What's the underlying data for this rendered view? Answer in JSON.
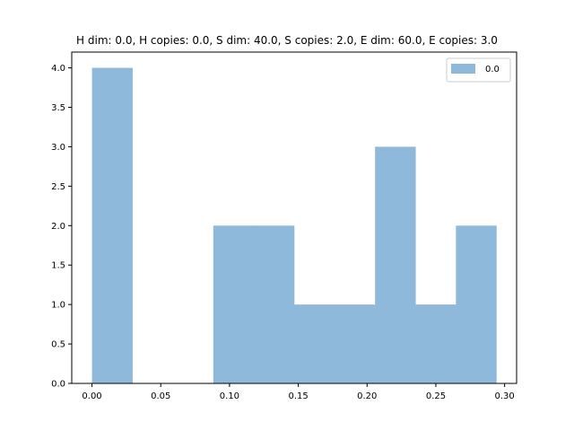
{
  "chart_data": {
    "type": "bar",
    "title": "H dim: 0.0, H copies: 0.0, S dim: 40.0, S copies: 2.0, E dim: 60.0, E copies: 3.0",
    "xlabel": "",
    "ylabel": "",
    "bins": [
      [
        0.0,
        0.0294
      ],
      [
        0.0294,
        0.0588
      ],
      [
        0.0588,
        0.0882
      ],
      [
        0.0882,
        0.1176
      ],
      [
        0.1176,
        0.147
      ],
      [
        0.147,
        0.1764
      ],
      [
        0.1764,
        0.2058
      ],
      [
        0.2058,
        0.2352
      ],
      [
        0.2352,
        0.2646
      ],
      [
        0.2646,
        0.294
      ]
    ],
    "values": [
      4,
      0,
      0,
      2,
      2,
      1,
      1,
      3,
      1,
      2
    ],
    "xlim": [
      -0.0147,
      0.3087
    ],
    "ylim": [
      0,
      4.2
    ],
    "xticks": [
      "0.00",
      "0.05",
      "0.10",
      "0.15",
      "0.20",
      "0.25",
      "0.30"
    ],
    "xtick_values": [
      0.0,
      0.05,
      0.1,
      0.15,
      0.2,
      0.25,
      0.3
    ],
    "yticks": [
      "0.0",
      "0.5",
      "1.0",
      "1.5",
      "2.0",
      "2.5",
      "3.0",
      "3.5",
      "4.0"
    ],
    "ytick_values": [
      0.0,
      0.5,
      1.0,
      1.5,
      2.0,
      2.5,
      3.0,
      3.5,
      4.0
    ],
    "grid": false,
    "legend": {
      "position": "top-right",
      "entries": [
        "0.0"
      ]
    },
    "bar_color": "#8fb9da"
  }
}
